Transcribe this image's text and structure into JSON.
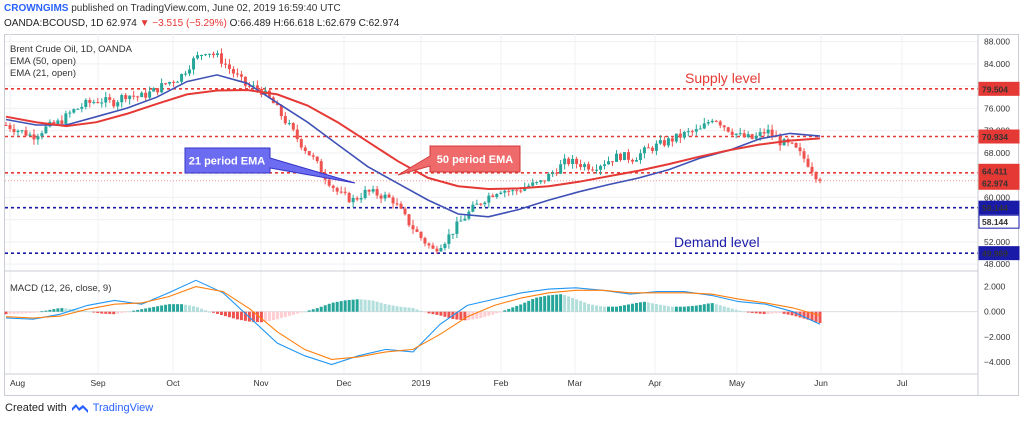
{
  "header": {
    "author": "CROWNGIMS",
    "published_text": "published on TradingView.com, June 02, 2019 16:59:40 UTC",
    "symbol": "OANDA:BCOUSD, 1D",
    "last": "62.974",
    "change": "▼ −3.515 (−5.29%)",
    "ohlc": "O:66.489 H:66.618 L:62.679 C:62.974"
  },
  "legend": {
    "title": "Brent Crude Oil, 1D, OANDA",
    "ema50": "EMA (50, open)",
    "ema21": "EMA (21, open)",
    "macd": "MACD (12, 26, close, 9)"
  },
  "annotations": {
    "supply": "Supply level",
    "demand": "Demand level",
    "ema21_label": "21 period EMA",
    "ema50_label": "50 period EMA"
  },
  "footer": {
    "created_with": "Created with",
    "brand": "TradingView"
  },
  "colors": {
    "up": "#26a69a",
    "down": "#ef5350",
    "ema21": "#3f51b5",
    "ema50": "#e53935",
    "level_red": "#e53935",
    "level_blue": "#1a1aa8",
    "accent": "#2962ff"
  },
  "chart_data": [
    {
      "type": "candlestick",
      "title": "Brent Crude Oil, 1D, OANDA",
      "x_ticks": [
        "Aug",
        "Sep",
        "Oct",
        "Nov",
        "Dec",
        "2019",
        "Feb",
        "Mar",
        "Apr",
        "May",
        "Jun",
        "Jul"
      ],
      "y_ticks": [
        48,
        52,
        56,
        60,
        64,
        68,
        72,
        76,
        80,
        84,
        88
      ],
      "ylim": [
        47.3,
        89
      ],
      "price_labels": [
        {
          "value": 79.504,
          "text": "79.504",
          "color": "#e53935"
        },
        {
          "value": 70.934,
          "text": "70.934",
          "color": "#e53935"
        },
        {
          "value": 64.411,
          "text": "64.411",
          "color": "#e53935"
        },
        {
          "value": 62.974,
          "text": "62.974",
          "color": "#e53935"
        },
        {
          "value": 58.144,
          "text": "58.144",
          "color": "#1a1aa8"
        },
        {
          "value": 58.144,
          "text": "58.144",
          "color": "#1a1aa8",
          "boxed": true
        },
        {
          "value": 49.969,
          "text": "49.969",
          "color": "#1a1aa8"
        }
      ],
      "levels": [
        {
          "value": 79.504,
          "color": "#e53935",
          "name": "Supply level"
        },
        {
          "value": 70.934,
          "color": "#e53935"
        },
        {
          "value": 64.411,
          "color": "#e53935"
        },
        {
          "value": 58.144,
          "color": "#1a1aa8"
        },
        {
          "value": 49.969,
          "color": "#1a1aa8",
          "name": "Demand level"
        }
      ],
      "price_path": [
        [
          "Aug",
          73.0
        ],
        [
          "Aug",
          72.0
        ],
        [
          "Aug",
          71.0
        ],
        [
          "Aug",
          72.5
        ],
        [
          "Aug",
          73.5
        ],
        [
          "Aug",
          75.5
        ],
        [
          "Aug",
          76.8
        ],
        [
          "Sep",
          77.5
        ],
        [
          "Sep",
          77.0
        ],
        [
          "Sep",
          78.5
        ],
        [
          "Sep",
          78.0
        ],
        [
          "Sep",
          79.0
        ],
        [
          "Sep",
          80.5
        ],
        [
          "Sep",
          81.5
        ],
        [
          "Oct",
          84.5
        ],
        [
          "Oct",
          86.5
        ],
        [
          "Oct",
          85.0
        ],
        [
          "Oct",
          82.5
        ],
        [
          "Oct",
          80.0
        ],
        [
          "Oct",
          79.5
        ],
        [
          "Nov",
          77.0
        ],
        [
          "Nov",
          73.5
        ],
        [
          "Nov",
          70.0
        ],
        [
          "Nov",
          67.0
        ],
        [
          "Nov",
          63.5
        ],
        [
          "Nov",
          60.5
        ],
        [
          "Nov",
          59.5
        ],
        [
          "Dec",
          61.0
        ],
        [
          "Dec",
          60.5
        ],
        [
          "Dec",
          59.5
        ],
        [
          "Dec",
          56.0
        ],
        [
          "Dec",
          53.0
        ],
        [
          "Dec",
          50.5
        ],
        [
          "Dec",
          52.5
        ],
        [
          "2019",
          55.5
        ],
        [
          "2019",
          58.0
        ],
        [
          "2019",
          60.0
        ],
        [
          "2019",
          61.5
        ],
        [
          "2019",
          61.0
        ],
        [
          "Feb",
          62.0
        ],
        [
          "Feb",
          62.5
        ],
        [
          "Feb",
          64.5
        ],
        [
          "Feb",
          66.5
        ],
        [
          "Feb",
          66.0
        ],
        [
          "Mar",
          65.5
        ],
        [
          "Mar",
          66.5
        ],
        [
          "Mar",
          67.5
        ],
        [
          "Mar",
          67.0
        ],
        [
          "Mar",
          68.5
        ],
        [
          "Apr",
          69.5
        ],
        [
          "Apr",
          70.5
        ],
        [
          "Apr",
          71.5
        ],
        [
          "Apr",
          72.0
        ],
        [
          "Apr",
          74.5
        ],
        [
          "May",
          72.5
        ],
        [
          "May",
          71.0
        ],
        [
          "May",
          70.5
        ],
        [
          "May",
          72.0
        ],
        [
          "May",
          70.0
        ],
        [
          "May",
          69.0
        ],
        [
          "Jun",
          66.5
        ],
        [
          "Jun",
          62.974
        ]
      ],
      "series": [
        {
          "name": "EMA (21, open)",
          "color": "#3f51b5",
          "values": [
            74.0,
            73.0,
            73.0,
            74.5,
            76.0,
            78.0,
            80.8,
            82.0,
            80.5,
            77.0,
            73.5,
            69.5,
            65.5,
            62.5,
            59.5,
            57.0,
            56.5,
            57.8,
            59.5,
            61.0,
            62.3,
            63.5,
            65.0,
            67.0,
            68.5,
            70.5,
            71.5,
            71.0
          ]
        },
        {
          "name": "EMA (50, open)",
          "color": "#e53935",
          "values": [
            74.5,
            73.5,
            72.8,
            73.5,
            75.0,
            76.8,
            78.5,
            79.2,
            79.3,
            78.5,
            76.5,
            73.5,
            70.0,
            66.5,
            63.5,
            62.0,
            61.5,
            61.6,
            62.0,
            62.8,
            63.8,
            64.8,
            66.0,
            67.3,
            68.5,
            69.5,
            70.2,
            70.6
          ]
        }
      ]
    },
    {
      "type": "bar",
      "title": "MACD (12, 26, close, 9)",
      "y_ticks": [
        2.0,
        0.0,
        -2.0,
        -4.0
      ],
      "y_tick_labels": [
        "2.000",
        "0.000",
        "−2.000",
        "−4.000"
      ],
      "ylim": [
        -4.8,
        3.0
      ],
      "histogram": [
        -0.2,
        -0.15,
        -0.1,
        0.1,
        0.3,
        0.2,
        0.05,
        -0.15,
        -0.2,
        0.0,
        0.2,
        0.4,
        0.6,
        0.6,
        0.4,
        0.0,
        -0.3,
        -0.6,
        -0.8,
        -0.85,
        -0.6,
        -0.3,
        0.0,
        0.3,
        0.7,
        0.9,
        1.0,
        0.9,
        0.6,
        0.4,
        0.3,
        -0.1,
        -0.3,
        -0.6,
        -0.7,
        -0.5,
        -0.2,
        0.2,
        0.6,
        1.1,
        1.3,
        1.4,
        1.0,
        0.6,
        0.4,
        0.4,
        0.6,
        0.8,
        0.6,
        0.4,
        0.4,
        0.5,
        0.7,
        0.4,
        0.1,
        -0.1,
        -0.2,
        -0.1,
        -0.3,
        -0.6,
        -0.9
      ],
      "series": [
        {
          "name": "MACD",
          "color": "#2196f3",
          "values": [
            -0.5,
            -0.6,
            -0.2,
            0.5,
            0.9,
            0.6,
            1.5,
            2.5,
            1.5,
            -0.5,
            -2.5,
            -3.5,
            -4.2,
            -3.5,
            -3.0,
            -3.2,
            -1.0,
            0.5,
            1.0,
            1.5,
            1.8,
            1.9,
            1.7,
            1.4,
            1.6,
            1.6,
            1.3,
            0.8,
            0.6,
            0.0,
            -1.0
          ]
        },
        {
          "name": "Signal",
          "color": "#ff7f0e",
          "values": [
            -0.4,
            -0.5,
            -0.35,
            0.2,
            0.6,
            0.7,
            1.2,
            2.0,
            1.6,
            0.2,
            -1.6,
            -3.0,
            -3.8,
            -3.6,
            -3.2,
            -3.0,
            -1.8,
            -0.4,
            0.5,
            1.1,
            1.5,
            1.7,
            1.7,
            1.5,
            1.5,
            1.5,
            1.4,
            1.0,
            0.7,
            0.3,
            -0.3
          ]
        }
      ]
    }
  ]
}
